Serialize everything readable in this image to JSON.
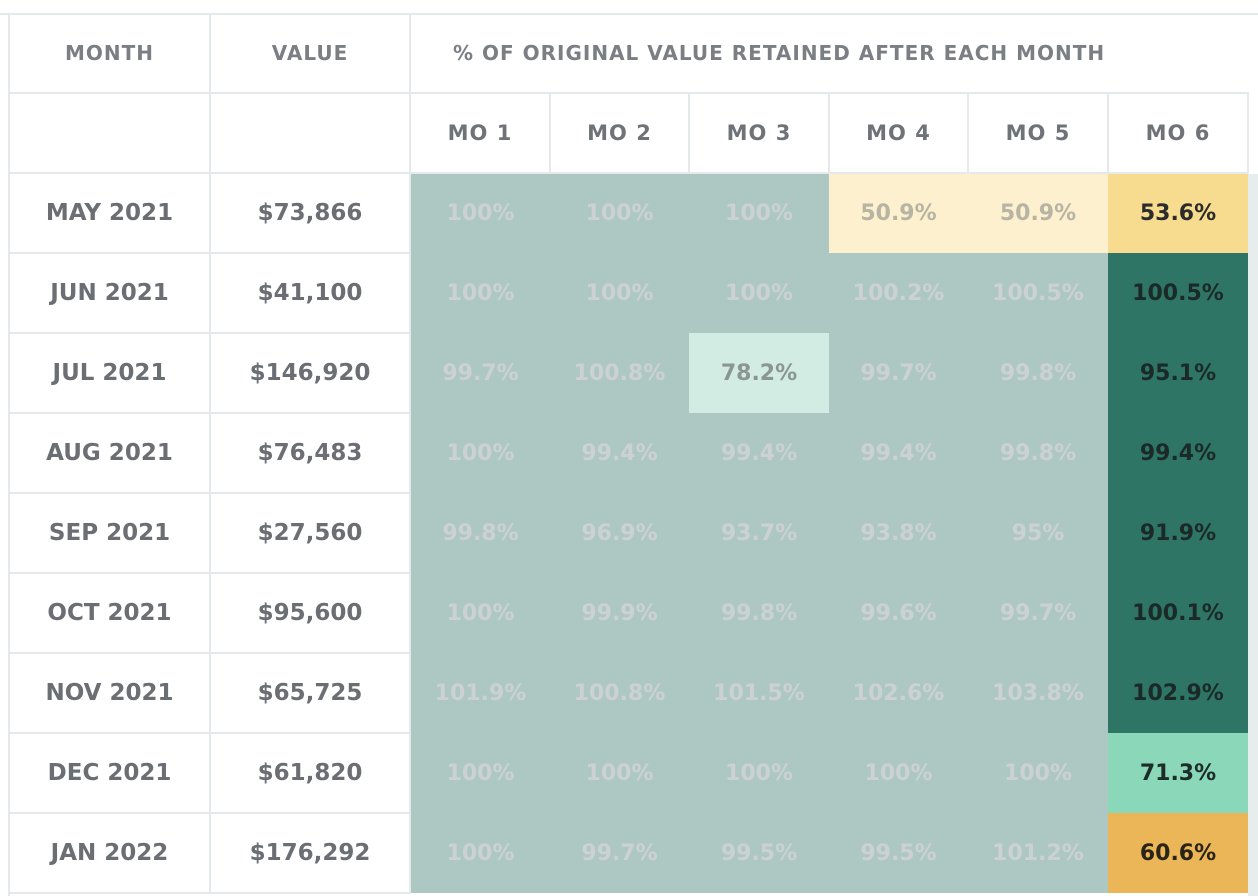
{
  "headers": {
    "month": "MONTH",
    "value": "VALUE",
    "retained": "% OF ORIGINAL VALUE RETAINED AFTER EACH MONTH"
  },
  "subheaders": [
    "MO 1",
    "MO 2",
    "MO 3",
    "MO 4",
    "MO 5",
    "MO 6"
  ],
  "rows": [
    {
      "month": "MAY 2021",
      "value": "$73,866",
      "pct": [
        "100%",
        "100%",
        "100%",
        "50.9%",
        "50.9%",
        "53.6%"
      ]
    },
    {
      "month": "JUN 2021",
      "value": "$41,100",
      "pct": [
        "100%",
        "100%",
        "100%",
        "100.2%",
        "100.5%",
        "100.5%"
      ]
    },
    {
      "month": "JUL 2021",
      "value": "$146,920",
      "pct": [
        "99.7%",
        "100.8%",
        "78.2%",
        "99.7%",
        "99.8%",
        "95.1%"
      ]
    },
    {
      "month": "AUG 2021",
      "value": "$76,483",
      "pct": [
        "100%",
        "99.4%",
        "99.4%",
        "99.4%",
        "99.8%",
        "99.4%"
      ]
    },
    {
      "month": "SEP 2021",
      "value": "$27,560",
      "pct": [
        "99.8%",
        "96.9%",
        "93.7%",
        "93.8%",
        "95%",
        "91.9%"
      ]
    },
    {
      "month": "OCT 2021",
      "value": "$95,600",
      "pct": [
        "100%",
        "99.9%",
        "99.8%",
        "99.6%",
        "99.7%",
        "100.1%"
      ]
    },
    {
      "month": "NOV 2021",
      "value": "$65,725",
      "pct": [
        "101.9%",
        "100.8%",
        "101.5%",
        "102.6%",
        "103.8%",
        "102.9%"
      ]
    },
    {
      "month": "DEC 2021",
      "value": "$61,820",
      "pct": [
        "100%",
        "100%",
        "100%",
        "100%",
        "100%",
        "71.3%"
      ]
    },
    {
      "month": "JAN 2022",
      "value": "$176,292",
      "pct": [
        "100%",
        "99.7%",
        "99.5%",
        "99.5%",
        "101.2%",
        "60.6%"
      ]
    }
  ],
  "colors": {
    "default": "#adc8c3",
    "cream": "#fdf0cf",
    "yellow": "#f7dc8f",
    "mint": "#d3ece3",
    "dark_green": "#2e7565",
    "light_green": "#8ad7b9",
    "orange": "#ebb658"
  }
}
